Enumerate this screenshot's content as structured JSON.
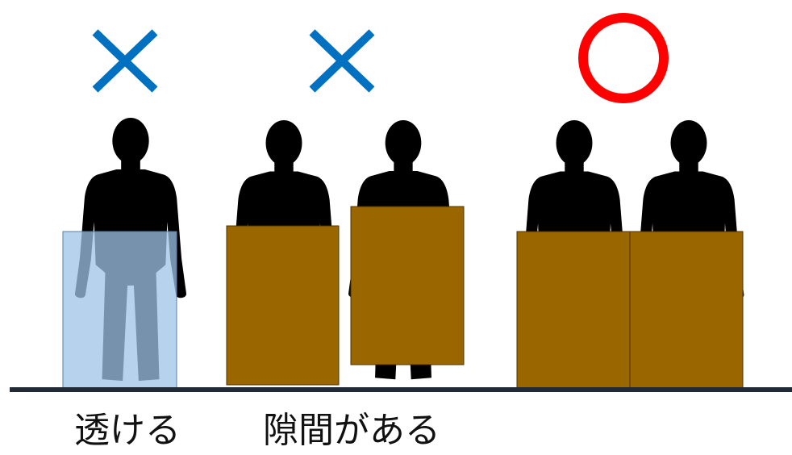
{
  "colors": {
    "wrong_mark": "#0070C0",
    "correct_mark": "#FF0000",
    "silhouette": "#000000",
    "podium": "#996600",
    "transparent_panel": "#9DC3E6",
    "floor": "#222A35"
  },
  "marks": {
    "example1": "wrong-x-mark",
    "example2": "wrong-x-mark",
    "example3": "correct-circle-mark"
  },
  "captions": {
    "example1": "透ける",
    "example2": "隙間がある"
  }
}
